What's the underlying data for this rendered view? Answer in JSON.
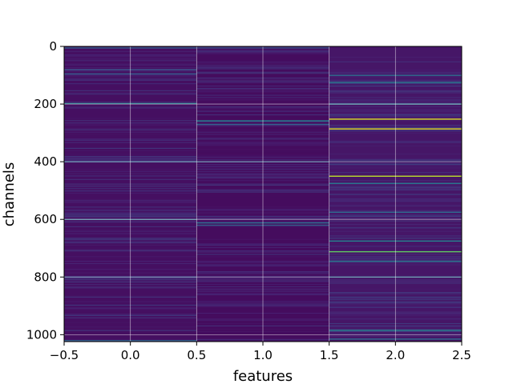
{
  "chart_data": {
    "type": "heatmap",
    "title": "",
    "xlabel": "features",
    "ylabel": "channels",
    "x_range": [
      -0.5,
      2.5
    ],
    "y_range": [
      1024,
      0
    ],
    "y_inverted": true,
    "columns": [
      0,
      1,
      2
    ],
    "rows": 1024,
    "colormap": "viridis",
    "grid": true,
    "x_ticks": [
      "−0.5",
      "0.0",
      "0.5",
      "1.0",
      "1.5",
      "2.0",
      "2.5"
    ],
    "x_tick_values": [
      -0.5,
      0.0,
      0.5,
      1.0,
      1.5,
      2.0,
      2.5
    ],
    "y_ticks": [
      "0",
      "200",
      "400",
      "600",
      "800",
      "1000"
    ],
    "y_tick_values": [
      0,
      200,
      400,
      600,
      800,
      1000
    ],
    "column_base_level": [
      0.04,
      0.03,
      0.06
    ],
    "highlights": [
      {
        "column": 0,
        "channel": 5,
        "value": 0.3
      },
      {
        "column": 0,
        "channel": 80,
        "value": 0.25
      },
      {
        "column": 0,
        "channel": 95,
        "value": 0.28
      },
      {
        "column": 0,
        "channel": 198,
        "value": 0.45
      },
      {
        "column": 0,
        "channel": 400,
        "value": 0.3
      },
      {
        "column": 0,
        "channel": 600,
        "value": 0.35
      },
      {
        "column": 0,
        "channel": 800,
        "value": 0.25
      },
      {
        "column": 0,
        "channel": 1020,
        "value": 0.3
      },
      {
        "column": 1,
        "channel": 5,
        "value": 0.25
      },
      {
        "column": 1,
        "channel": 258,
        "value": 0.45
      },
      {
        "column": 1,
        "channel": 270,
        "value": 0.3
      },
      {
        "column": 1,
        "channel": 400,
        "value": 0.3
      },
      {
        "column": 1,
        "channel": 612,
        "value": 0.35
      },
      {
        "column": 1,
        "channel": 620,
        "value": 0.3
      },
      {
        "column": 2,
        "channel": 100,
        "value": 0.35
      },
      {
        "column": 2,
        "channel": 125,
        "value": 0.4
      },
      {
        "column": 2,
        "channel": 200,
        "value": 0.4
      },
      {
        "column": 2,
        "channel": 252,
        "value": 0.95
      },
      {
        "column": 2,
        "channel": 286,
        "value": 0.95
      },
      {
        "column": 2,
        "channel": 450,
        "value": 0.9
      },
      {
        "column": 2,
        "channel": 475,
        "value": 0.4
      },
      {
        "column": 2,
        "channel": 575,
        "value": 0.35
      },
      {
        "column": 2,
        "channel": 675,
        "value": 0.45
      },
      {
        "column": 2,
        "channel": 712,
        "value": 0.75
      },
      {
        "column": 2,
        "channel": 745,
        "value": 0.4
      },
      {
        "column": 2,
        "channel": 800,
        "value": 0.35
      },
      {
        "column": 2,
        "channel": 985,
        "value": 0.45
      },
      {
        "column": 2,
        "channel": 1015,
        "value": 0.35
      }
    ]
  }
}
